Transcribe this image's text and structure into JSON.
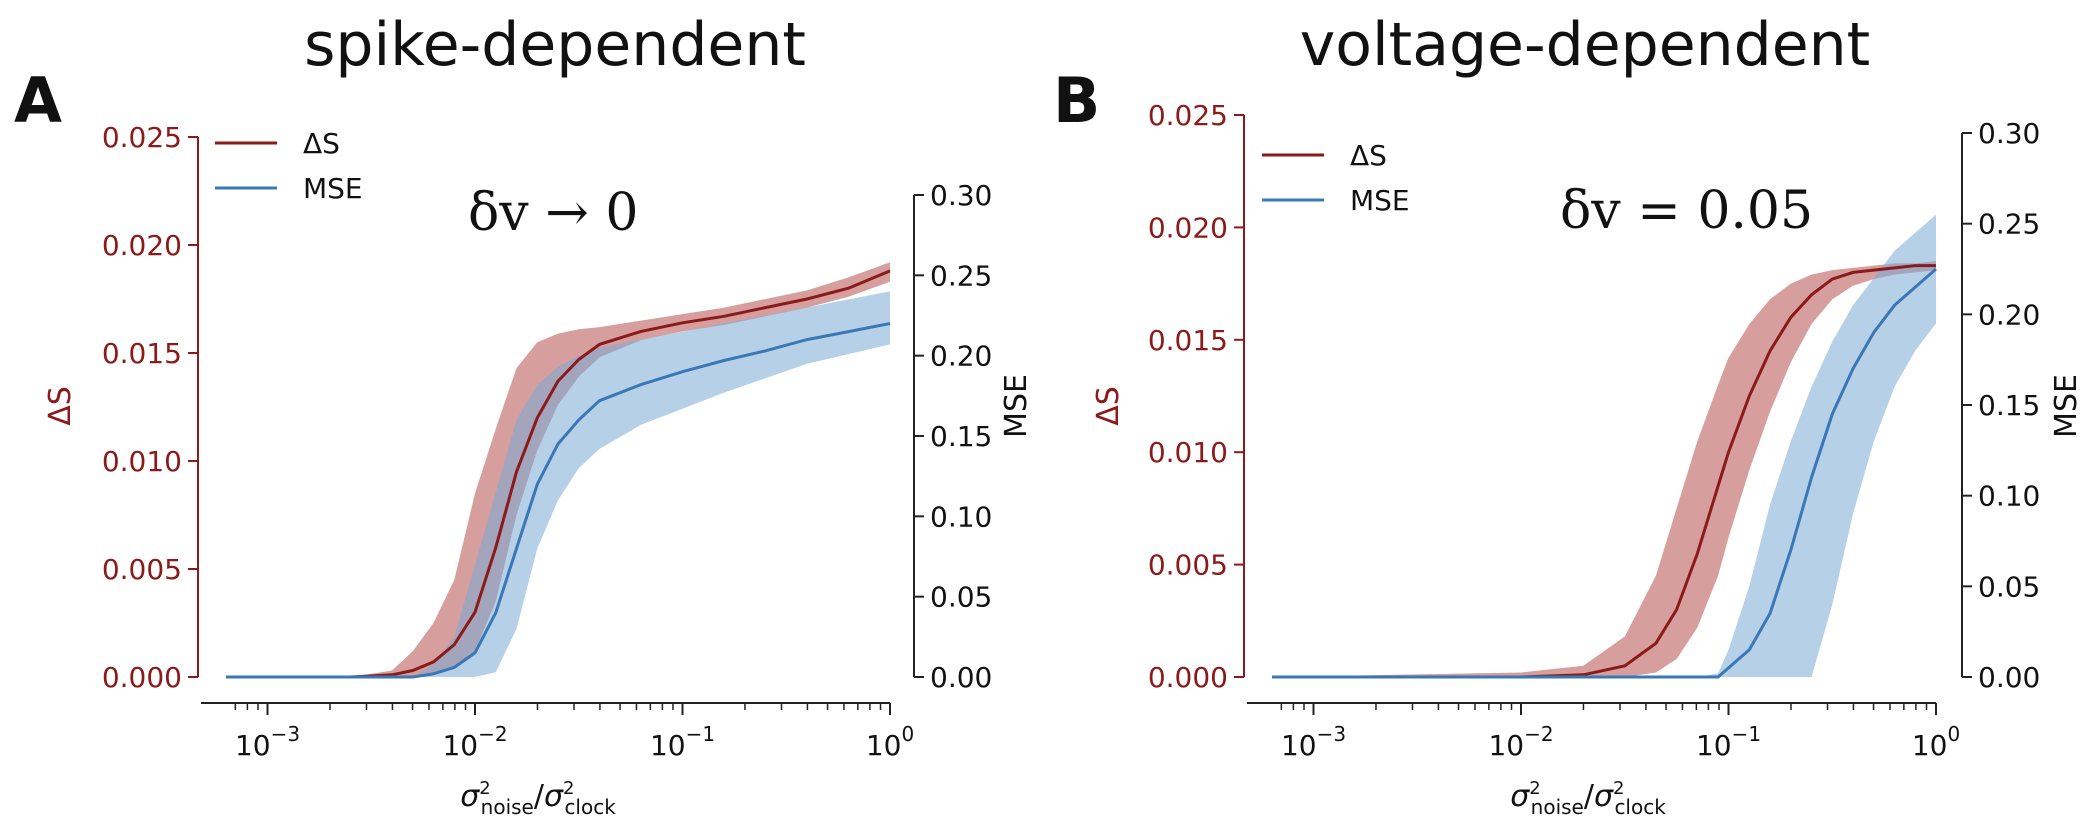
{
  "colors": {
    "delta_s": "#8b1a1a",
    "mse": "#3a78b5",
    "delta_s_fill": "#b5504e",
    "mse_fill": "#7aa9d6",
    "axis": "#222222"
  },
  "chart_data": [
    {
      "type": "line",
      "panel": "A",
      "title": "spike-dependent",
      "annotation": "δv → 0",
      "xlabel": "σ²noise/σ²clock",
      "xscale": "log",
      "xlim_exp": [
        -3.2,
        0
      ],
      "x_ticks": [
        {
          "base": "10",
          "exp": "−3",
          "value": -3
        },
        {
          "base": "10",
          "exp": "−2",
          "value": -2
        },
        {
          "base": "10",
          "exp": "−1",
          "value": -1
        },
        {
          "base": "10",
          "exp": "0",
          "value": 0
        }
      ],
      "ylabel_left": "ΔS",
      "ylim_left": [
        0,
        0.025
      ],
      "yticks_left": [
        "0.000",
        "0.005",
        "0.010",
        "0.015",
        "0.020",
        "0.025"
      ],
      "ylabel_right": "MSE",
      "ylim_right": [
        0,
        0.3
      ],
      "yticks_right": [
        "0.00",
        "0.05",
        "0.10",
        "0.15",
        "0.20",
        "0.25",
        "0.30"
      ],
      "legend": {
        "position": "top-left",
        "entries": [
          "ΔS",
          "MSE"
        ]
      },
      "log10_x": [
        -3.2,
        -2.6,
        -2.4,
        -2.3,
        -2.2,
        -2.1,
        -2.0,
        -1.9,
        -1.8,
        -1.7,
        -1.6,
        -1.5,
        -1.4,
        -1.2,
        -1.0,
        -0.8,
        -0.6,
        -0.4,
        -0.2,
        0.0
      ],
      "series": [
        {
          "name": "ΔS",
          "axis": "left",
          "values": [
            0.0,
            0.0,
            0.0001,
            0.0003,
            0.0007,
            0.0015,
            0.003,
            0.006,
            0.0095,
            0.012,
            0.0137,
            0.0147,
            0.0154,
            0.016,
            0.0164,
            0.0167,
            0.0171,
            0.0175,
            0.018,
            0.0188
          ],
          "lower": [
            0.0,
            0.0,
            0.0,
            0.0,
            0.0001,
            0.0004,
            0.0012,
            0.0035,
            0.0075,
            0.0105,
            0.0126,
            0.0139,
            0.0148,
            0.0156,
            0.016,
            0.0163,
            0.0167,
            0.0171,
            0.0176,
            0.0183
          ],
          "upper": [
            0.0,
            0.0,
            0.0003,
            0.0012,
            0.0025,
            0.0045,
            0.0085,
            0.0115,
            0.0143,
            0.0155,
            0.0159,
            0.0161,
            0.0162,
            0.0165,
            0.0168,
            0.0171,
            0.0175,
            0.0179,
            0.0185,
            0.0192
          ]
        },
        {
          "name": "MSE",
          "axis": "right",
          "values": [
            0.0,
            0.0,
            0.0,
            0.0,
            0.002,
            0.006,
            0.015,
            0.04,
            0.08,
            0.12,
            0.145,
            0.16,
            0.172,
            0.182,
            0.19,
            0.197,
            0.203,
            0.21,
            0.215,
            0.22
          ],
          "lower": [
            0.0,
            0.0,
            0.0,
            0.0,
            0.0,
            0.0,
            0.0,
            0.003,
            0.03,
            0.08,
            0.11,
            0.13,
            0.142,
            0.157,
            0.167,
            0.177,
            0.186,
            0.195,
            0.201,
            0.207
          ],
          "upper": [
            0.0,
            0.0,
            0.0,
            0.0,
            0.008,
            0.025,
            0.07,
            0.115,
            0.16,
            0.182,
            0.193,
            0.2,
            0.205,
            0.21,
            0.215,
            0.22,
            0.225,
            0.23,
            0.235,
            0.24
          ]
        }
      ]
    },
    {
      "type": "line",
      "panel": "B",
      "title": "voltage-dependent",
      "annotation": "δv = 0.05",
      "xlabel": "σ²noise/σ²clock",
      "xscale": "log",
      "xlim_exp": [
        -3.2,
        0
      ],
      "x_ticks": [
        {
          "base": "10",
          "exp": "−3",
          "value": -3
        },
        {
          "base": "10",
          "exp": "−2",
          "value": -2
        },
        {
          "base": "10",
          "exp": "−1",
          "value": -1
        },
        {
          "base": "10",
          "exp": "0",
          "value": 0
        }
      ],
      "ylabel_left": "ΔS",
      "ylim_left": [
        0,
        0.025
      ],
      "yticks_left": [
        "0.000",
        "0.005",
        "0.010",
        "0.015",
        "0.020",
        "0.025"
      ],
      "ylabel_right": "MSE",
      "ylim_right": [
        0,
        0.3
      ],
      "yticks_right": [
        "0.00",
        "0.05",
        "0.10",
        "0.15",
        "0.20",
        "0.25",
        "0.30"
      ],
      "legend": {
        "position": "top-left",
        "entries": [
          "ΔS",
          "MSE"
        ]
      },
      "log10_x": [
        -3.2,
        -2.0,
        -1.7,
        -1.5,
        -1.35,
        -1.25,
        -1.15,
        -1.05,
        -1.0,
        -0.9,
        -0.8,
        -0.7,
        -0.6,
        -0.5,
        -0.4,
        -0.3,
        -0.2,
        -0.1,
        0.0
      ],
      "series": [
        {
          "name": "ΔS",
          "axis": "left",
          "values": [
            0.0,
            0.0,
            0.0001,
            0.0005,
            0.0015,
            0.003,
            0.0055,
            0.0085,
            0.01,
            0.0125,
            0.0145,
            0.016,
            0.017,
            0.0177,
            0.018,
            0.0181,
            0.0182,
            0.0183,
            0.0183
          ],
          "lower": [
            0.0,
            0.0,
            0.0,
            0.0,
            0.0002,
            0.0008,
            0.0022,
            0.0045,
            0.0062,
            0.0092,
            0.0118,
            0.014,
            0.0157,
            0.0168,
            0.0174,
            0.0177,
            0.0179,
            0.018,
            0.0181
          ],
          "upper": [
            0.0,
            0.0002,
            0.0005,
            0.0018,
            0.0045,
            0.0075,
            0.0105,
            0.013,
            0.0142,
            0.0157,
            0.0168,
            0.0175,
            0.0179,
            0.0181,
            0.0182,
            0.0183,
            0.0184,
            0.0184,
            0.0185
          ]
        },
        {
          "name": "MSE",
          "axis": "right",
          "values": [
            0.0,
            0.0,
            0.0,
            0.0,
            0.0,
            0.0,
            0.0,
            0.0,
            0.005,
            0.015,
            0.035,
            0.07,
            0.11,
            0.145,
            0.17,
            0.19,
            0.205,
            0.215,
            0.225
          ],
          "lower": [
            0.0,
            0.0,
            0.0,
            0.0,
            0.0,
            0.0,
            0.0,
            0.0,
            0.0,
            0.0,
            0.0,
            0.0,
            0.0,
            0.04,
            0.09,
            0.13,
            0.16,
            0.18,
            0.195
          ],
          "upper": [
            0.0,
            0.0,
            0.0,
            0.0,
            0.0,
            0.0,
            0.0,
            0.002,
            0.015,
            0.05,
            0.095,
            0.13,
            0.16,
            0.185,
            0.205,
            0.22,
            0.235,
            0.245,
            0.255
          ]
        }
      ]
    }
  ]
}
